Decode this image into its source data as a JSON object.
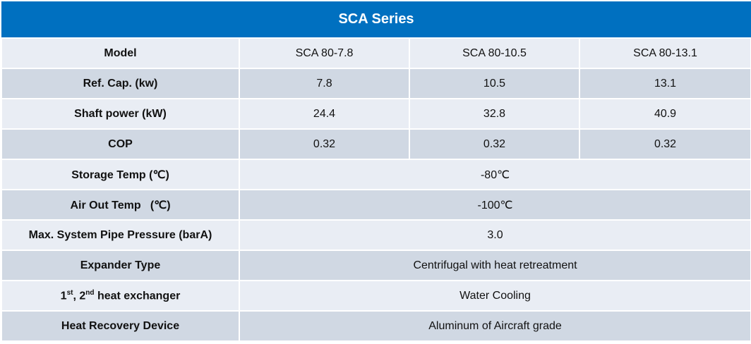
{
  "title": "SCA  Series",
  "colors": {
    "header": "#0070C0",
    "row_light": "#E9EDF4",
    "row_dark": "#D0D8E3"
  },
  "rows": [
    {
      "label": "Model",
      "values": [
        "SCA 80-7.8",
        "SCA 80-10.5",
        "SCA 80-13.1"
      ]
    },
    {
      "label": "Ref. Cap. (kw)",
      "values": [
        "7.8",
        "10.5",
        "13.1"
      ]
    },
    {
      "label": "Shaft power (kW)",
      "values": [
        "24.4",
        "32.8",
        "40.9"
      ]
    },
    {
      "label": "COP",
      "values": [
        "0.32",
        "0.32",
        "0.32"
      ]
    },
    {
      "label": "Storage Temp (℃)",
      "value": "-80℃"
    },
    {
      "label": "Air Out Temp   (℃)",
      "value": "-100℃"
    },
    {
      "label": "Max. System Pipe Pressure (barA)",
      "value": "3.0"
    },
    {
      "label": "Expander Type",
      "value": "Centrifugal with heat retreatment"
    },
    {
      "label_parts": {
        "n1": "1",
        "s1": "st",
        "sep": ", 2",
        "s2": "nd",
        "rest": " heat exchanger"
      },
      "value": "Water Cooling"
    },
    {
      "label": "Heat Recovery Device",
      "value": "Aluminum of Aircraft grade"
    }
  ]
}
